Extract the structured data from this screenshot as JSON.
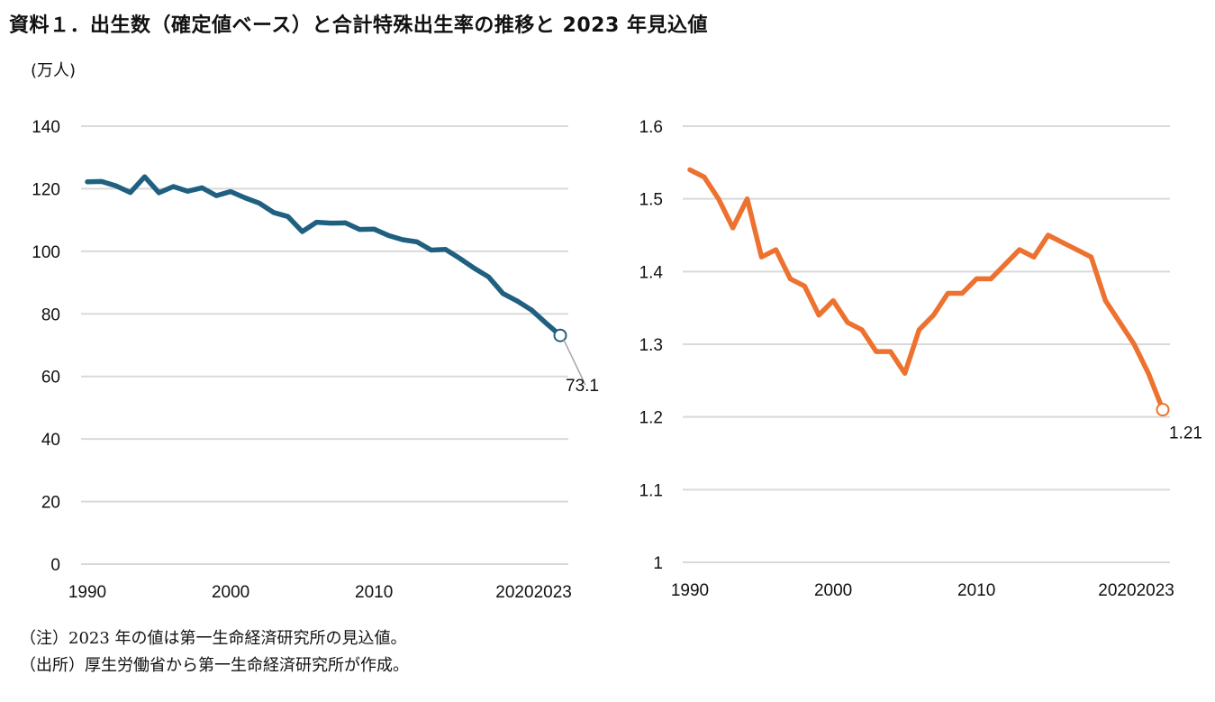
{
  "title": "資料１．出生数（確定値ベース）と合計特殊出生率の推移と 2023 年見込値",
  "unit_label": "(万人)",
  "notes": [
    "（注）2023 年の値は第一生命経済研究所の見込値。",
    "（出所）厚生労働省から第一生命経済研究所が作成。"
  ],
  "chart_data": [
    {
      "type": "line",
      "title": "出生数",
      "ylabel": "(万人)",
      "xlabel": "",
      "ylim": [
        0,
        140
      ],
      "yticks": [
        0,
        20,
        40,
        60,
        80,
        100,
        120,
        140
      ],
      "xticks": [
        1990,
        2000,
        2010,
        2020,
        2023
      ],
      "xtick_labels": [
        "1990",
        "2000",
        "2010",
        "2020",
        "2023"
      ],
      "grid": true,
      "color": "#1f5f7f",
      "annotation": {
        "x": 2023,
        "label": "73.1"
      },
      "x": [
        1990,
        1991,
        1992,
        1993,
        1994,
        1995,
        1996,
        1997,
        1998,
        1999,
        2000,
        2001,
        2002,
        2003,
        2004,
        2005,
        2006,
        2007,
        2008,
        2009,
        2010,
        2011,
        2012,
        2013,
        2014,
        2015,
        2016,
        2017,
        2018,
        2019,
        2020,
        2021,
        2022,
        2023
      ],
      "values": [
        122.2,
        122.3,
        120.9,
        118.8,
        123.8,
        118.7,
        120.7,
        119.2,
        120.3,
        117.8,
        119.1,
        117.1,
        115.4,
        112.4,
        111.1,
        106.3,
        109.3,
        109.0,
        109.1,
        107.0,
        107.1,
        105.1,
        103.7,
        103.0,
        100.4,
        100.6,
        97.7,
        94.6,
        91.8,
        86.5,
        84.1,
        81.2,
        77.1,
        73.1
      ]
    },
    {
      "type": "line",
      "title": "合計特殊出生率",
      "ylabel": "",
      "xlabel": "",
      "ylim": [
        1.0,
        1.6
      ],
      "yticks": [
        1,
        1.1,
        1.2,
        1.3,
        1.4,
        1.5,
        1.6
      ],
      "ytick_labels": [
        "1",
        "1.1",
        "1.2",
        "1.3",
        "1.4",
        "1.5",
        "1.6"
      ],
      "xticks": [
        1990,
        2000,
        2010,
        2020,
        2023
      ],
      "xtick_labels": [
        "1990",
        "2000",
        "2010",
        "2020",
        "2023"
      ],
      "grid": true,
      "color": "#ed7230",
      "annotation": {
        "x": 2023,
        "label": "1.21"
      },
      "x": [
        1990,
        1991,
        1992,
        1993,
        1994,
        1995,
        1996,
        1997,
        1998,
        1999,
        2000,
        2001,
        2002,
        2003,
        2004,
        2005,
        2006,
        2007,
        2008,
        2009,
        2010,
        2011,
        2012,
        2013,
        2014,
        2015,
        2016,
        2017,
        2018,
        2019,
        2020,
        2021,
        2022,
        2023
      ],
      "values": [
        1.54,
        1.53,
        1.5,
        1.46,
        1.5,
        1.42,
        1.43,
        1.39,
        1.38,
        1.34,
        1.36,
        1.33,
        1.32,
        1.29,
        1.29,
        1.26,
        1.32,
        1.34,
        1.37,
        1.37,
        1.39,
        1.39,
        1.41,
        1.43,
        1.42,
        1.45,
        1.44,
        1.43,
        1.42,
        1.36,
        1.33,
        1.3,
        1.26,
        1.21
      ]
    }
  ]
}
